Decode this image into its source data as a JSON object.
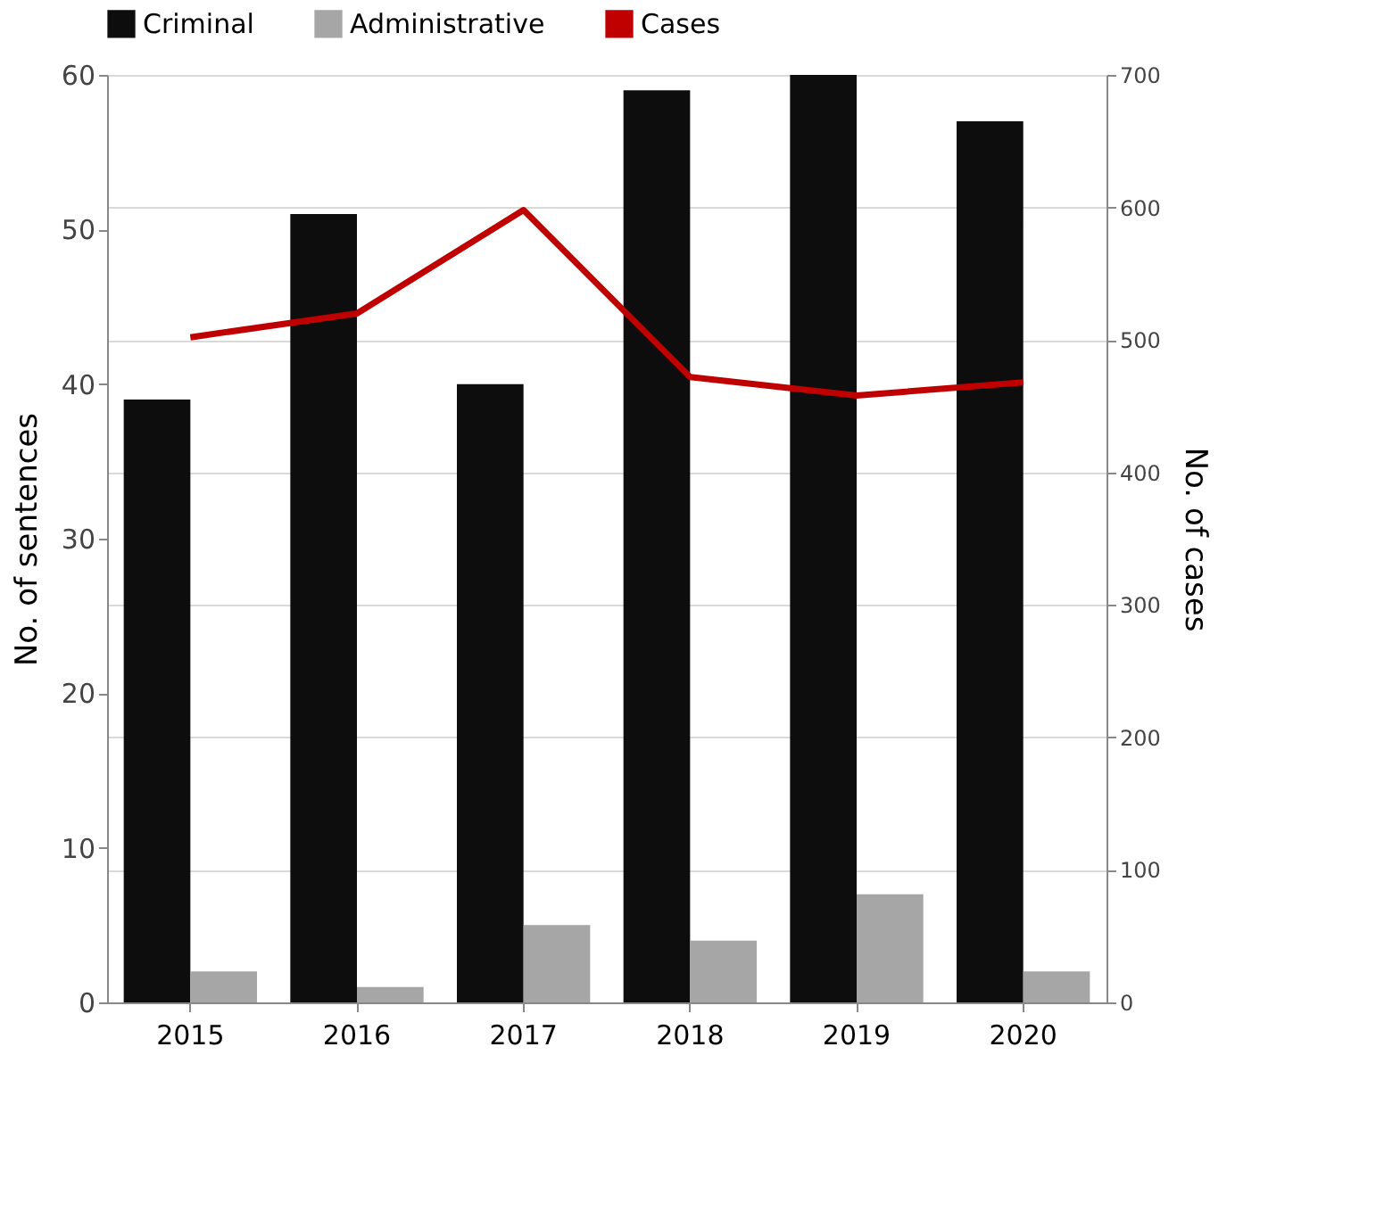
{
  "chart_data": {
    "type": "bar",
    "categories": [
      "2015",
      "2016",
      "2017",
      "2018",
      "2019",
      "2020"
    ],
    "series": [
      {
        "name": "Criminal",
        "color": "#0d0d0d",
        "values": [
          39,
          51,
          40,
          59,
          60,
          57
        ]
      },
      {
        "name": "Administrative",
        "color": "#a6a6a6",
        "values": [
          2,
          1,
          5,
          4,
          7,
          2
        ]
      },
      {
        "name": "Cases",
        "type": "line",
        "axis": "y2",
        "color": "#c00000",
        "values": [
          502,
          520,
          598,
          472,
          458,
          468
        ]
      }
    ],
    "ylabel": "No. of sentences",
    "y2label": "No. of cases",
    "ylim": [
      0,
      60
    ],
    "yticks": [
      0,
      10,
      20,
      30,
      40,
      50,
      60
    ],
    "y2lim": [
      0,
      700
    ],
    "y2ticks": [
      0,
      100,
      200,
      300,
      400,
      500,
      600,
      700
    ],
    "grid": "y2",
    "legend": "top"
  }
}
